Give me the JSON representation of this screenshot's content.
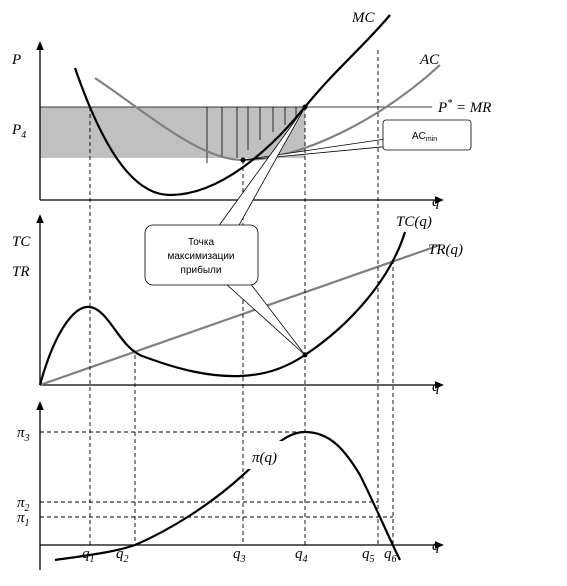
{
  "top_panel": {
    "y_label": "P",
    "price_label": {
      "base": "P",
      "sub": "4"
    },
    "mc_label": "MC",
    "ac_label": "AC",
    "mr_label": {
      "base": "P",
      "sup": "*",
      "rest": " = MR"
    },
    "x_label": "q",
    "callout": {
      "base": "AC",
      "sub": "min"
    }
  },
  "middle_panel": {
    "y_label_tc": "TC",
    "y_label_tr": "TR",
    "tc_label": "TC(q)",
    "tr_label": "TR(q)",
    "x_label": "q",
    "callout": [
      "Точка",
      "максимизации",
      "прибыли"
    ]
  },
  "bottom_panel": {
    "curve_label": "π(q)",
    "x_label": "q",
    "y_ticks": [
      {
        "base": "π",
        "sub": "3"
      },
      {
        "base": "π",
        "sub": "2"
      },
      {
        "base": "π",
        "sub": "1"
      }
    ],
    "x_ticks": [
      {
        "base": "q",
        "sub": "1"
      },
      {
        "base": "q",
        "sub": "2"
      },
      {
        "base": "q",
        "sub": "3"
      },
      {
        "base": "q",
        "sub": "4"
      },
      {
        "base": "q",
        "sub": "5"
      },
      {
        "base": "q",
        "sub": "6"
      }
    ]
  }
}
